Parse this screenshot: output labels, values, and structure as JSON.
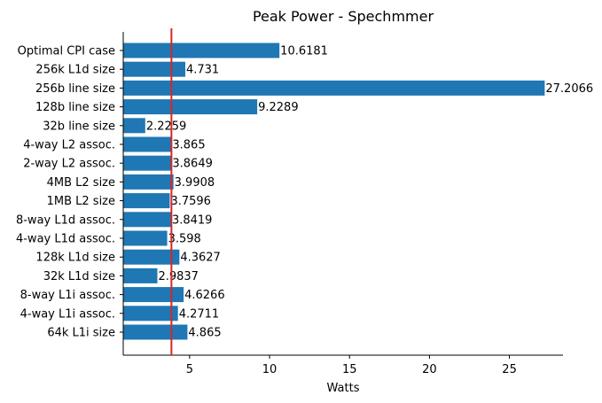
{
  "chart_data": {
    "type": "bar",
    "orientation": "horizontal",
    "title": "Peak Power - Spechmmer",
    "xlabel": "Watts",
    "ylabel": "",
    "xlim": [
      0.85,
      28.35
    ],
    "xticks": [
      5,
      10,
      15,
      20,
      25
    ],
    "grid": false,
    "categories": [
      "Optimal CPI case",
      "256k L1d size",
      "256b line size",
      "128b line size",
      "32b line size",
      "4-way L2 assoc.",
      "2-way L2 assoc.",
      "4MB L2 size",
      "1MB L2 size",
      "8-way L1d assoc.",
      "4-way L1d assoc.",
      "128k L1d size",
      "32k L1d size",
      "8-way L1i assoc.",
      "4-way L1i assoc.",
      "64k L1i size"
    ],
    "values": [
      10.6181,
      4.731,
      27.2066,
      9.2289,
      2.2259,
      3.865,
      3.8649,
      3.9908,
      3.7596,
      3.8419,
      3.598,
      4.3627,
      2.9837,
      4.6266,
      4.2711,
      4.865
    ],
    "labels": [
      "10.6181",
      "4.731",
      "27.2066",
      "9.2289",
      "2.2259",
      "3.865",
      "3.8649",
      "3.9908",
      "3.7596",
      "3.8419",
      "3.598",
      "4.3627",
      "2.9837",
      "4.6266",
      "4.2711",
      "4.865"
    ],
    "reference_line": {
      "value": 3.865,
      "orientation": "vertical"
    },
    "colors": {
      "bar": "#1f77b4",
      "reference_line": "#d62728",
      "axis": "#000000",
      "text": "#000000",
      "background": "#ffffff"
    }
  }
}
